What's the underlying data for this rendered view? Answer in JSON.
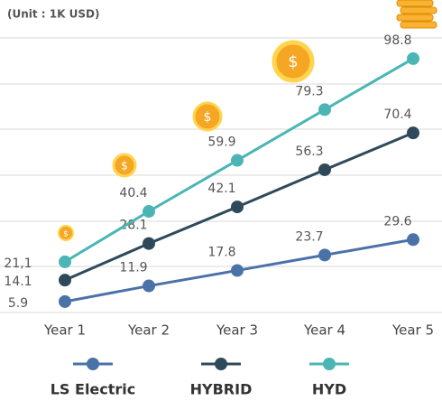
{
  "chart_data": {
    "type": "line",
    "subtitle": "(Unit : 1K USD)",
    "categories": [
      "Year 1",
      "Year 2",
      "Year 3",
      "Year 4",
      "Year 5"
    ],
    "ylim": [
      0,
      115
    ],
    "series": [
      {
        "name": "LS Electric",
        "color": "#4a72a8",
        "values": [
          5.9,
          11.9,
          17.8,
          23.7,
          29.6
        ]
      },
      {
        "name": "HYBRID",
        "color": "#2e4a5a",
        "values": [
          14.1,
          28.1,
          42.1,
          56.3,
          70.4
        ]
      },
      {
        "name": "HYD",
        "color": "#4bb5b5",
        "values": [
          21.1,
          40.4,
          59.9,
          79.3,
          98.8
        ],
        "value_labels": [
          "21,1",
          "40.4",
          "59.9",
          "79.3",
          "98.8"
        ]
      }
    ]
  }
}
